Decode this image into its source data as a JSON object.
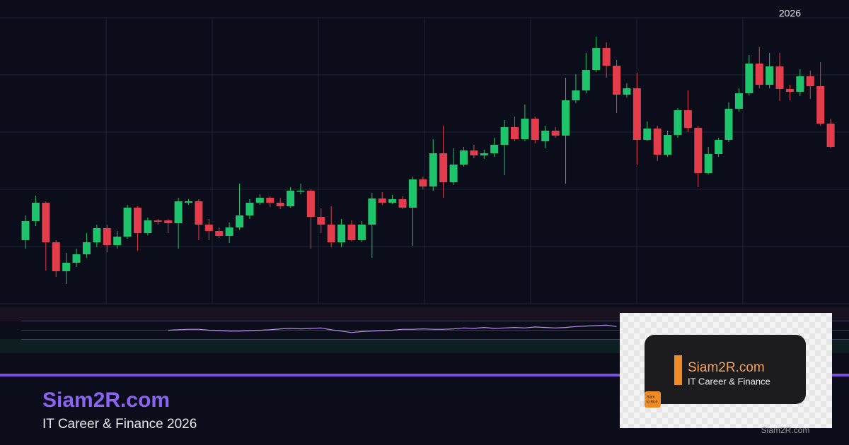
{
  "chart_data": [
    {
      "type": "candlestick",
      "up_color": "#1ec46c",
      "down_color": "#e33d4c",
      "xlim": [
        -2.5,
        80.8
      ],
      "xticks": [
        {
          "value": 75,
          "label": "2026"
        }
      ],
      "ylim": [
        0,
        405
      ],
      "yticks": [
        0,
        81,
        162,
        243,
        324,
        405
      ],
      "grid": true,
      "open": [
        90,
        117,
        143,
        87,
        46,
        58,
        70,
        87,
        107,
        83,
        95,
        136,
        100,
        118,
        118,
        114,
        143,
        145,
        112,
        103,
        96,
        108,
        125,
        143,
        150,
        143,
        138,
        159,
        160,
        123,
        112,
        87,
        112,
        90,
        112,
        149,
        143,
        148,
        136,
        176,
        166,
        213,
        172,
        197,
        217,
        210,
        213,
        225,
        250,
        233,
        262,
        230,
        245,
        238,
        288,
        302,
        331,
        362,
        337,
        296,
        305,
        232,
        248,
        211,
        239,
        274,
        249,
        185,
        212,
        232,
        276,
        298,
        340,
        310,
        336,
        304,
        300,
        322,
        308,
        255
      ],
      "high": [
        125,
        153,
        145,
        90,
        72,
        78,
        100,
        112,
        112,
        103,
        140,
        138,
        122,
        120,
        120,
        150,
        148,
        148,
        120,
        108,
        115,
        170,
        148,
        155,
        152,
        150,
        165,
        170,
        162,
        135,
        138,
        120,
        118,
        117,
        157,
        158,
        154,
        152,
        180,
        180,
        233,
        252,
        220,
        222,
        225,
        218,
        235,
        260,
        265,
        282,
        265,
        252,
        250,
        320,
        325,
        355,
        378,
        370,
        345,
        312,
        327,
        258,
        252,
        245,
        277,
        302,
        252,
        222,
        235,
        285,
        305,
        352,
        364,
        355,
        355,
        310,
        332,
        330,
        342,
        262
      ],
      "low": [
        78,
        110,
        47,
        38,
        28,
        52,
        65,
        80,
        73,
        78,
        92,
        75,
        97,
        112,
        100,
        78,
        140,
        90,
        90,
        93,
        86,
        105,
        120,
        140,
        137,
        134,
        136,
        155,
        78,
        100,
        80,
        80,
        88,
        87,
        65,
        140,
        141,
        134,
        82,
        162,
        160,
        150,
        168,
        194,
        206,
        205,
        208,
        182,
        230,
        230,
        227,
        220,
        235,
        170,
        284,
        298,
        328,
        320,
        270,
        292,
        197,
        230,
        202,
        208,
        235,
        243,
        165,
        183,
        208,
        229,
        272,
        295,
        305,
        305,
        287,
        288,
        294,
        290,
        252,
        220
      ],
      "close": [
        117,
        143,
        87,
        46,
        58,
        70,
        87,
        107,
        83,
        95,
        136,
        100,
        118,
        116,
        114,
        145,
        145,
        112,
        103,
        96,
        108,
        125,
        143,
        150,
        143,
        138,
        160,
        160,
        123,
        112,
        87,
        112,
        90,
        112,
        149,
        143,
        148,
        136,
        176,
        166,
        213,
        172,
        197,
        217,
        210,
        213,
        225,
        250,
        233,
        262,
        232,
        245,
        238,
        288,
        302,
        331,
        362,
        337,
        296,
        305,
        232,
        248,
        211,
        239,
        274,
        249,
        185,
        212,
        232,
        276,
        298,
        340,
        310,
        336,
        304,
        300,
        322,
        308,
        255,
        222
      ]
    },
    {
      "type": "line",
      "color": "#b98cf0",
      "xlim": [
        -2.5,
        80.8
      ],
      "ylim": [
        0,
        100
      ],
      "yticks": [
        30,
        50,
        70
      ],
      "grid": true,
      "values": [
        null,
        null,
        null,
        null,
        null,
        null,
        null,
        null,
        null,
        null,
        null,
        null,
        null,
        null,
        50,
        51,
        52,
        52,
        50,
        49,
        48,
        48,
        49,
        50,
        51,
        53,
        54,
        53,
        54,
        55,
        51,
        48,
        45,
        47,
        48,
        49,
        50,
        52,
        52,
        53,
        52,
        52,
        53,
        55,
        54,
        56,
        54,
        55,
        56,
        55,
        57,
        56,
        55,
        56,
        58,
        59,
        60,
        61,
        58,
        null,
        null,
        null,
        null,
        null,
        null,
        null,
        null,
        null,
        null,
        null,
        null,
        null,
        null,
        null,
        null,
        null,
        null,
        null,
        null,
        null
      ]
    }
  ],
  "branding": {
    "site": "Siam2R.com",
    "tagline": "IT Career & Finance 2026",
    "logo_site": "Siam2R.com",
    "logo_tagline": "IT Career & Finance",
    "logo_badge_1": "Siam",
    "logo_badge_2": "to Rich",
    "watermark": "Siam2R.com"
  }
}
